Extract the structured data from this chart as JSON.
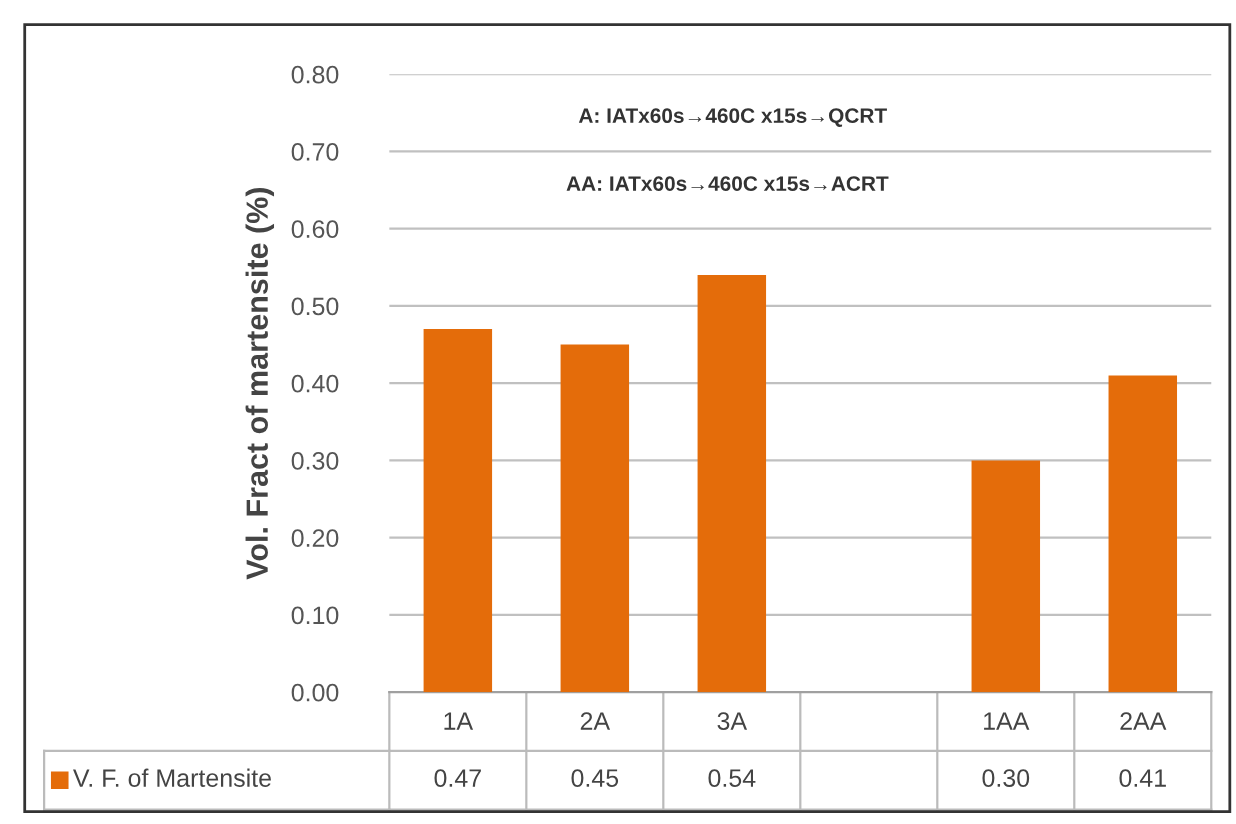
{
  "chart_data": {
    "type": "bar",
    "ylabel": "Vol. Fract of martensite (%)",
    "categories": [
      "1A",
      "2A",
      "3A",
      null,
      "1AA",
      "2AA"
    ],
    "series": [
      {
        "name": "V. F. of Martensite",
        "color": "#e46c0a",
        "values": [
          0.47,
          0.45,
          0.54,
          null,
          0.3,
          0.41
        ],
        "value_labels": [
          "0.47",
          "0.45",
          "0.54",
          null,
          "0.30",
          "0.41"
        ]
      }
    ],
    "ylim": [
      0,
      0.8
    ],
    "yticks": [
      {
        "value": 0,
        "label": "0.00"
      },
      {
        "value": 0.1,
        "label": "0.10"
      },
      {
        "value": 0.2,
        "label": "0.20"
      },
      {
        "value": 0.3,
        "label": "0.30"
      },
      {
        "value": 0.4,
        "label": "0.40"
      },
      {
        "value": 0.5,
        "label": "0.50"
      },
      {
        "value": 0.6,
        "label": "0.60"
      },
      {
        "value": 0.7,
        "label": "0.70"
      },
      {
        "value": 0.8,
        "label": "0.80"
      }
    ],
    "grid": "y",
    "legend": "bottom left",
    "annotations": [
      "A: IATx60s→460C x15s→QCRT",
      "AA: IATx60s→460C x15s→ACRT"
    ]
  }
}
